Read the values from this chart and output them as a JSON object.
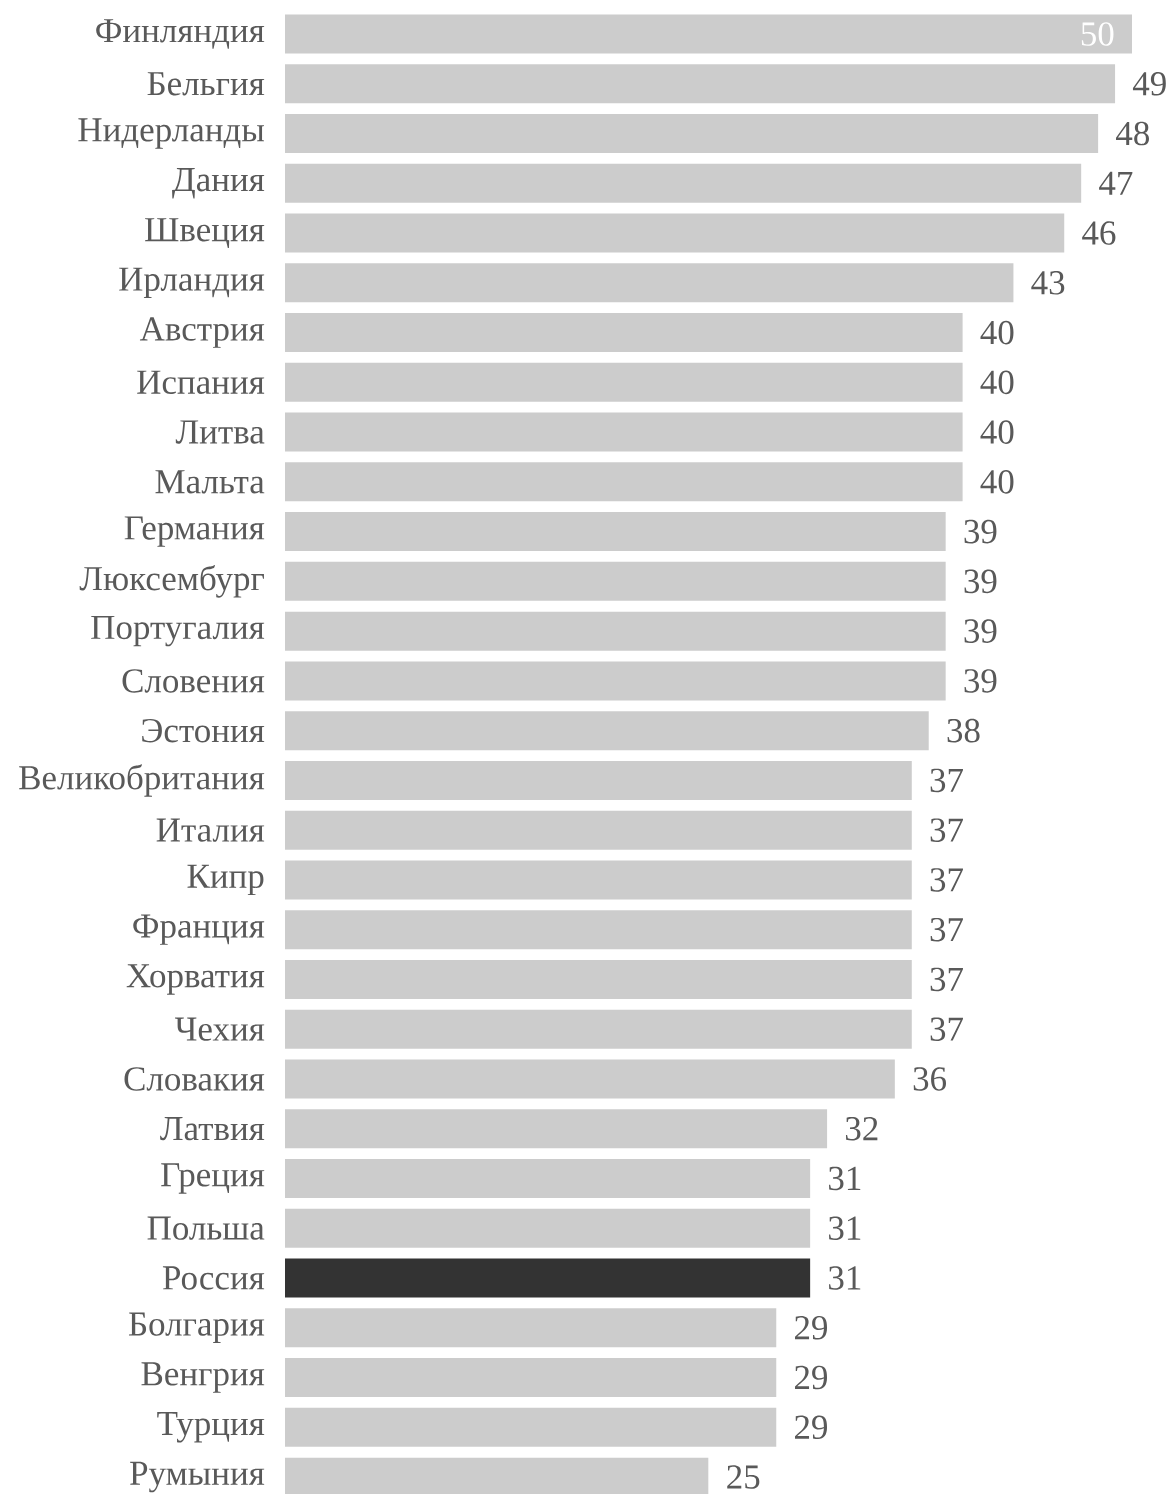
{
  "chart_data": {
    "type": "bar",
    "orientation": "horizontal",
    "categories": [
      "Финляндия",
      "Бельгия",
      "Нидерланды",
      "Дания",
      "Швеция",
      "Ирландия",
      "Австрия",
      "Испания",
      "Литва",
      "Мальта",
      "Германия",
      "Люксембург",
      "Португалия",
      "Словения",
      "Эстония",
      "Великобритания",
      "Италия",
      "Кипр",
      "Франция",
      "Хорватия",
      "Чехия",
      "Словакия",
      "Латвия",
      "Греция",
      "Польша",
      "Россия",
      "Болгария",
      "Венгрия",
      "Турция",
      "Румыния"
    ],
    "values": [
      50,
      49,
      48,
      47,
      46,
      43,
      40,
      40,
      40,
      40,
      39,
      39,
      39,
      39,
      38,
      37,
      37,
      37,
      37,
      37,
      37,
      36,
      32,
      31,
      31,
      31,
      29,
      29,
      29,
      25
    ],
    "colors": [
      "#cccccc",
      "#cccccc",
      "#cccccc",
      "#cccccc",
      "#cccccc",
      "#cccccc",
      "#cccccc",
      "#cccccc",
      "#cccccc",
      "#cccccc",
      "#cccccc",
      "#cccccc",
      "#cccccc",
      "#cccccc",
      "#cccccc",
      "#cccccc",
      "#cccccc",
      "#cccccc",
      "#cccccc",
      "#cccccc",
      "#cccccc",
      "#cccccc",
      "#cccccc",
      "#cccccc",
      "#cccccc",
      "#333333",
      "#cccccc",
      "#cccccc",
      "#cccccc",
      "#cccccc"
    ],
    "data_labels": true
  }
}
